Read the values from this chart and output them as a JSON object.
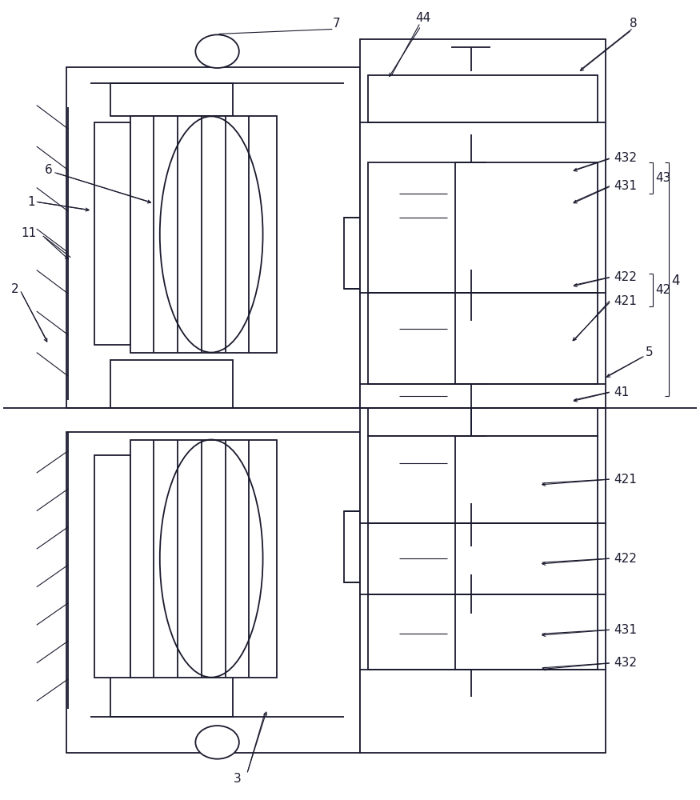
{
  "bg_color": "#ffffff",
  "lc": "#1a1a2e",
  "lw": 1.3,
  "lw_thin": 0.8,
  "fs": 10
}
